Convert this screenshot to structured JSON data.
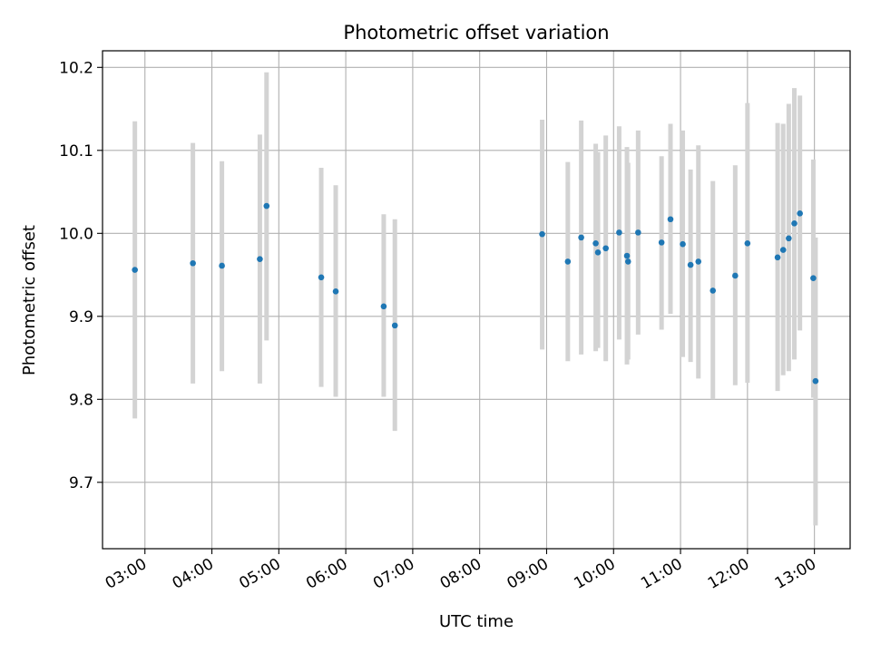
{
  "chart_data": {
    "type": "scatter",
    "title": "Photometric offset variation",
    "xlabel": "UTC time",
    "ylabel": "Photometric offset",
    "x_axis_type": "time",
    "x_ticks": [
      "03:00",
      "04:00",
      "05:00",
      "06:00",
      "07:00",
      "08:00",
      "09:00",
      "10:00",
      "11:00",
      "12:00",
      "13:00"
    ],
    "xlim": [
      "02:22",
      "13:32"
    ],
    "ylim": [
      9.62,
      10.22
    ],
    "y_ticks": [
      9.7,
      9.8,
      9.9,
      10.0,
      10.1,
      10.2
    ],
    "grid": true,
    "legend": "none",
    "colors": {
      "point": "#1f77b4",
      "errorbar": "#d3d3d3",
      "grid": "#b0b0b0"
    },
    "series": [
      {
        "points": [
          {
            "x": "02:51",
            "y": 9.956,
            "ylow": 9.777,
            "yhigh": 10.135
          },
          {
            "x": "03:43",
            "y": 9.964,
            "ylow": 9.819,
            "yhigh": 10.109
          },
          {
            "x": "04:09",
            "y": 9.961,
            "ylow": 9.834,
            "yhigh": 10.087
          },
          {
            "x": "04:43",
            "y": 9.969,
            "ylow": 9.819,
            "yhigh": 10.119
          },
          {
            "x": "04:49",
            "y": 10.033,
            "ylow": 9.871,
            "yhigh": 10.194
          },
          {
            "x": "05:38",
            "y": 9.947,
            "ylow": 9.815,
            "yhigh": 10.079
          },
          {
            "x": "05:51",
            "y": 9.93,
            "ylow": 9.803,
            "yhigh": 10.058
          },
          {
            "x": "06:34",
            "y": 9.912,
            "ylow": 9.803,
            "yhigh": 10.023
          },
          {
            "x": "06:44",
            "y": 9.889,
            "ylow": 9.762,
            "yhigh": 10.017
          },
          {
            "x": "08:56",
            "y": 9.999,
            "ylow": 9.86,
            "yhigh": 10.137
          },
          {
            "x": "09:19",
            "y": 9.966,
            "ylow": 9.846,
            "yhigh": 10.086
          },
          {
            "x": "09:31",
            "y": 9.995,
            "ylow": 9.854,
            "yhigh": 10.136
          },
          {
            "x": "09:44",
            "y": 9.988,
            "ylow": 9.858,
            "yhigh": 10.108
          },
          {
            "x": "09:46",
            "y": 9.977,
            "ylow": 9.862,
            "yhigh": 10.098
          },
          {
            "x": "09:53",
            "y": 9.982,
            "ylow": 9.846,
            "yhigh": 10.118
          },
          {
            "x": "10:05",
            "y": 10.001,
            "ylow": 9.872,
            "yhigh": 10.129
          },
          {
            "x": "10:12",
            "y": 9.973,
            "ylow": 9.842,
            "yhigh": 10.104
          },
          {
            "x": "10:13",
            "y": 9.966,
            "ylow": 9.848,
            "yhigh": 10.085
          },
          {
            "x": "10:22",
            "y": 10.001,
            "ylow": 9.878,
            "yhigh": 10.124
          },
          {
            "x": "10:43",
            "y": 9.989,
            "ylow": 9.884,
            "yhigh": 10.093
          },
          {
            "x": "10:51",
            "y": 10.017,
            "ylow": 9.903,
            "yhigh": 10.132
          },
          {
            "x": "11:02",
            "y": 9.987,
            "ylow": 9.851,
            "yhigh": 10.124
          },
          {
            "x": "11:09",
            "y": 9.962,
            "ylow": 9.845,
            "yhigh": 10.077
          },
          {
            "x": "11:16",
            "y": 9.966,
            "ylow": 9.825,
            "yhigh": 10.106
          },
          {
            "x": "11:29",
            "y": 9.931,
            "ylow": 9.8,
            "yhigh": 10.063
          },
          {
            "x": "11:49",
            "y": 9.949,
            "ylow": 9.817,
            "yhigh": 10.082
          },
          {
            "x": "12:00",
            "y": 9.988,
            "ylow": 9.82,
            "yhigh": 10.157
          },
          {
            "x": "12:27",
            "y": 9.971,
            "ylow": 9.81,
            "yhigh": 10.133
          },
          {
            "x": "12:32",
            "y": 9.98,
            "ylow": 9.829,
            "yhigh": 10.132
          },
          {
            "x": "12:37",
            "y": 9.994,
            "ylow": 9.834,
            "yhigh": 10.156
          },
          {
            "x": "12:42",
            "y": 10.012,
            "ylow": 9.848,
            "yhigh": 10.175
          },
          {
            "x": "12:47",
            "y": 10.024,
            "ylow": 9.883,
            "yhigh": 10.166
          },
          {
            "x": "12:59",
            "y": 9.946,
            "ylow": 9.802,
            "yhigh": 10.089
          },
          {
            "x": "13:01",
            "y": 9.822,
            "ylow": 9.648,
            "yhigh": 9.995
          }
        ]
      }
    ]
  }
}
